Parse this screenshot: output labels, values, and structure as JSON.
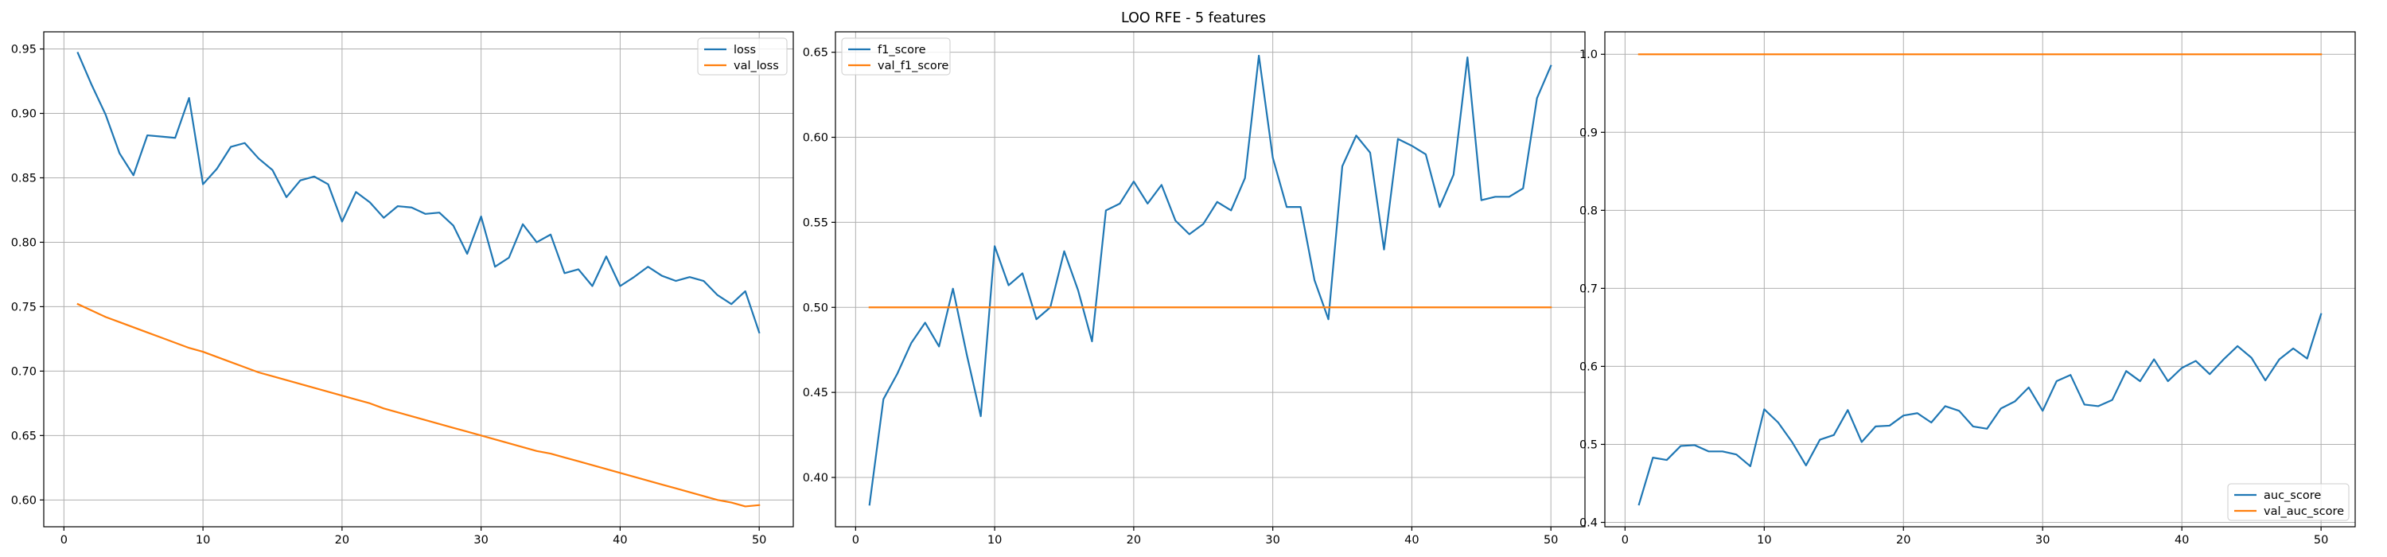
{
  "figure": {
    "suptitle": "LOO RFE - 5 features"
  },
  "colors": {
    "series1": "#1f77b4",
    "series2": "#ff7f0e",
    "grid": "#b0b0b0"
  },
  "chart_data": [
    {
      "type": "line",
      "title": "",
      "xlabel": "",
      "ylabel": "",
      "xlim": [
        -1.45,
        52.45
      ],
      "ylim": [
        0.5792,
        0.9633
      ],
      "xticks": [
        0,
        10,
        20,
        30,
        40,
        50
      ],
      "yticks": [
        0.6,
        0.65,
        0.7,
        0.75,
        0.8,
        0.85,
        0.9,
        0.95
      ],
      "ytick_labels": [
        "0.60",
        "0.65",
        "0.70",
        "0.75",
        "0.80",
        "0.85",
        "0.90",
        "0.95"
      ],
      "grid": true,
      "legend": "top-right",
      "x": [
        1,
        2,
        3,
        4,
        5,
        6,
        7,
        8,
        9,
        10,
        11,
        12,
        13,
        14,
        15,
        16,
        17,
        18,
        19,
        20,
        21,
        22,
        23,
        24,
        25,
        26,
        27,
        28,
        29,
        30,
        31,
        32,
        33,
        34,
        35,
        36,
        37,
        38,
        39,
        40,
        41,
        42,
        43,
        44,
        45,
        46,
        47,
        48,
        49,
        50
      ],
      "series": [
        {
          "name": "loss",
          "values": [
            0.947,
            0.922,
            0.899,
            0.869,
            0.852,
            0.883,
            0.882,
            0.881,
            0.912,
            0.845,
            0.857,
            0.874,
            0.877,
            0.865,
            0.856,
            0.835,
            0.848,
            0.851,
            0.845,
            0.816,
            0.839,
            0.831,
            0.819,
            0.828,
            0.827,
            0.822,
            0.823,
            0.813,
            0.791,
            0.82,
            0.781,
            0.788,
            0.814,
            0.8,
            0.806,
            0.776,
            0.779,
            0.766,
            0.789,
            0.766,
            0.773,
            0.781,
            0.774,
            0.77,
            0.773,
            0.77,
            0.759,
            0.752,
            0.762,
            0.73
          ]
        },
        {
          "name": "val_loss",
          "values": [
            0.752,
            0.747,
            0.742,
            0.738,
            0.734,
            0.73,
            0.726,
            0.722,
            0.718,
            0.715,
            0.711,
            0.707,
            0.703,
            0.699,
            0.696,
            0.693,
            0.69,
            0.687,
            0.684,
            0.681,
            0.678,
            0.675,
            0.671,
            0.668,
            0.665,
            0.662,
            0.659,
            0.656,
            0.653,
            0.65,
            0.647,
            0.644,
            0.641,
            0.638,
            0.636,
            0.633,
            0.63,
            0.627,
            0.624,
            0.621,
            0.618,
            0.615,
            0.612,
            0.609,
            0.606,
            0.603,
            0.6,
            0.598,
            0.595,
            0.596
          ]
        }
      ]
    },
    {
      "type": "line",
      "title": "",
      "xlabel": "",
      "ylabel": "",
      "xlim": [
        -1.45,
        52.45
      ],
      "ylim": [
        0.371,
        0.662
      ],
      "xticks": [
        0,
        10,
        20,
        30,
        40,
        50
      ],
      "yticks": [
        0.4,
        0.45,
        0.5,
        0.55,
        0.6,
        0.65
      ],
      "ytick_labels": [
        "0.40",
        "0.45",
        "0.50",
        "0.55",
        "0.60",
        "0.65"
      ],
      "grid": true,
      "legend": "top-left",
      "x": [
        1,
        2,
        3,
        4,
        5,
        6,
        7,
        8,
        9,
        10,
        11,
        12,
        13,
        14,
        15,
        16,
        17,
        18,
        19,
        20,
        21,
        22,
        23,
        24,
        25,
        26,
        27,
        28,
        29,
        30,
        31,
        32,
        33,
        34,
        35,
        36,
        37,
        38,
        39,
        40,
        41,
        42,
        43,
        44,
        45,
        46,
        47,
        48,
        49,
        50
      ],
      "series": [
        {
          "name": "f1_score",
          "values": [
            0.384,
            0.446,
            0.461,
            0.479,
            0.491,
            0.477,
            0.511,
            0.472,
            0.436,
            0.536,
            0.513,
            0.52,
            0.493,
            0.5,
            0.533,
            0.51,
            0.48,
            0.557,
            0.561,
            0.574,
            0.561,
            0.572,
            0.551,
            0.543,
            0.549,
            0.562,
            0.557,
            0.576,
            0.648,
            0.588,
            0.559,
            0.559,
            0.516,
            0.493,
            0.583,
            0.601,
            0.591,
            0.534,
            0.599,
            0.595,
            0.59,
            0.559,
            0.578,
            0.647,
            0.563,
            0.565,
            0.565,
            0.57,
            0.623,
            0.642
          ]
        },
        {
          "name": "val_f1_score",
          "values": [
            0.5,
            0.5,
            0.5,
            0.5,
            0.5,
            0.5,
            0.5,
            0.5,
            0.5,
            0.5,
            0.5,
            0.5,
            0.5,
            0.5,
            0.5,
            0.5,
            0.5,
            0.5,
            0.5,
            0.5,
            0.5,
            0.5,
            0.5,
            0.5,
            0.5,
            0.5,
            0.5,
            0.5,
            0.5,
            0.5,
            0.5,
            0.5,
            0.5,
            0.5,
            0.5,
            0.5,
            0.5,
            0.5,
            0.5,
            0.5,
            0.5,
            0.5,
            0.5,
            0.5,
            0.5,
            0.5,
            0.5,
            0.5,
            0.5,
            0.5
          ]
        }
      ]
    },
    {
      "type": "line",
      "title": "",
      "xlabel": "",
      "ylabel": "",
      "xlim": [
        -1.45,
        52.45
      ],
      "ylim": [
        0.3944,
        1.0288
      ],
      "xticks": [
        0,
        10,
        20,
        30,
        40,
        50
      ],
      "yticks": [
        0.4,
        0.5,
        0.6,
        0.7,
        0.8,
        0.9,
        1.0
      ],
      "ytick_labels": [
        "0.4",
        "0.5",
        "0.6",
        "0.7",
        "0.8",
        "0.9",
        "1.0"
      ],
      "grid": true,
      "legend": "bottom-right",
      "x": [
        1,
        2,
        3,
        4,
        5,
        6,
        7,
        8,
        9,
        10,
        11,
        12,
        13,
        14,
        15,
        16,
        17,
        18,
        19,
        20,
        21,
        22,
        23,
        24,
        25,
        26,
        27,
        28,
        29,
        30,
        31,
        32,
        33,
        34,
        35,
        36,
        37,
        38,
        39,
        40,
        41,
        42,
        43,
        44,
        45,
        46,
        47,
        48,
        49,
        50
      ],
      "series": [
        {
          "name": "auc_score",
          "values": [
            0.423,
            0.483,
            0.48,
            0.498,
            0.499,
            0.491,
            0.491,
            0.487,
            0.472,
            0.545,
            0.528,
            0.503,
            0.473,
            0.506,
            0.512,
            0.544,
            0.503,
            0.523,
            0.524,
            0.537,
            0.54,
            0.528,
            0.549,
            0.543,
            0.523,
            0.52,
            0.546,
            0.555,
            0.573,
            0.543,
            0.581,
            0.589,
            0.551,
            0.549,
            0.557,
            0.594,
            0.581,
            0.609,
            0.581,
            0.598,
            0.607,
            0.59,
            0.609,
            0.626,
            0.611,
            0.582,
            0.609,
            0.623,
            0.61,
            0.667
          ]
        },
        {
          "name": "val_auc_score",
          "values": [
            1,
            1,
            1,
            1,
            1,
            1,
            1,
            1,
            1,
            1,
            1,
            1,
            1,
            1,
            1,
            1,
            1,
            1,
            1,
            1,
            1,
            1,
            1,
            1,
            1,
            1,
            1,
            1,
            1,
            1,
            1,
            1,
            1,
            1,
            1,
            1,
            1,
            1,
            1,
            1,
            1,
            1,
            1,
            1,
            1,
            1,
            1,
            1,
            1,
            1
          ]
        }
      ]
    }
  ]
}
